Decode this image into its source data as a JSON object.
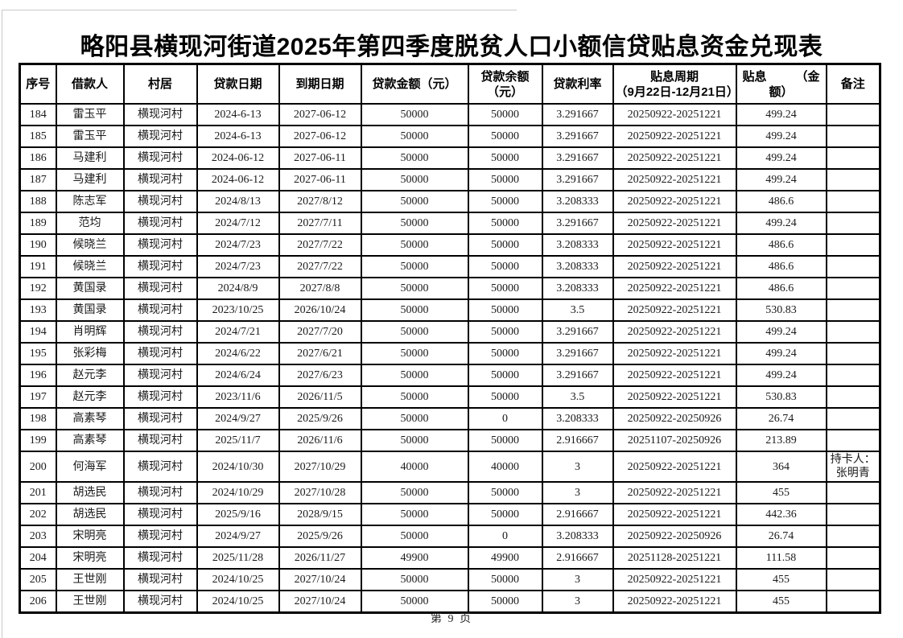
{
  "page": {
    "title": "略阳县横现河街道2025年第四季度脱贫人口小额信贷贴息资金兑现表",
    "footer": "第 9 页"
  },
  "table": {
    "headers": {
      "no": "序号",
      "borrower": "借款人",
      "village": "村居",
      "loan_date": "贷款日期",
      "due_date": "到期日期",
      "amount": "贷款金额（元）",
      "balance_line1": "贷款余额",
      "balance_line2": "（元）",
      "rate": "贷款利率",
      "period_line1": "贴息周期",
      "period_line2": "（9月22日-12月21日）",
      "subsidy_line1_left": "贴息",
      "subsidy_line1_right": "（金",
      "subsidy_line2": "额）",
      "remark": "备注"
    },
    "rows": [
      {
        "no": "184",
        "name": "雷玉平",
        "village": "横现河村",
        "loan_date": "2024-6-13",
        "due_date": "2027-06-12",
        "amount": "50000",
        "balance": "50000",
        "rate": "3.291667",
        "period": "20250922-20251221",
        "subsidy": "499.24",
        "remark": ""
      },
      {
        "no": "185",
        "name": "雷玉平",
        "village": "横现河村",
        "loan_date": "2024-6-13",
        "due_date": "2027-06-12",
        "amount": "50000",
        "balance": "50000",
        "rate": "3.291667",
        "period": "20250922-20251221",
        "subsidy": "499.24",
        "remark": ""
      },
      {
        "no": "186",
        "name": "马建利",
        "village": "横现河村",
        "loan_date": "2024-06-12",
        "due_date": "2027-06-11",
        "amount": "50000",
        "balance": "50000",
        "rate": "3.291667",
        "period": "20250922-20251221",
        "subsidy": "499.24",
        "remark": ""
      },
      {
        "no": "187",
        "name": "马建利",
        "village": "横现河村",
        "loan_date": "2024-06-12",
        "due_date": "2027-06-11",
        "amount": "50000",
        "balance": "50000",
        "rate": "3.291667",
        "period": "20250922-20251221",
        "subsidy": "499.24",
        "remark": ""
      },
      {
        "no": "188",
        "name": "陈志军",
        "village": "横现河村",
        "loan_date": "2024/8/13",
        "due_date": "2027/8/12",
        "amount": "50000",
        "balance": "50000",
        "rate": "3.208333",
        "period": "20250922-20251221",
        "subsidy": "486.6",
        "remark": ""
      },
      {
        "no": "189",
        "name": "范均",
        "village": "横现河村",
        "loan_date": "2024/7/12",
        "due_date": "2027/7/11",
        "amount": "50000",
        "balance": "50000",
        "rate": "3.291667",
        "period": "20250922-20251221",
        "subsidy": "499.24",
        "remark": ""
      },
      {
        "no": "190",
        "name": "候晓兰",
        "village": "横现河村",
        "loan_date": "2024/7/23",
        "due_date": "2027/7/22",
        "amount": "50000",
        "balance": "50000",
        "rate": "3.208333",
        "period": "20250922-20251221",
        "subsidy": "486.6",
        "remark": ""
      },
      {
        "no": "191",
        "name": "候晓兰",
        "village": "横现河村",
        "loan_date": "2024/7/23",
        "due_date": "2027/7/22",
        "amount": "50000",
        "balance": "50000",
        "rate": "3.208333",
        "period": "20250922-20251221",
        "subsidy": "486.6",
        "remark": ""
      },
      {
        "no": "192",
        "name": "黄国录",
        "village": "横现河村",
        "loan_date": "2024/8/9",
        "due_date": "2027/8/8",
        "amount": "50000",
        "balance": "50000",
        "rate": "3.208333",
        "period": "20250922-20251221",
        "subsidy": "486.6",
        "remark": ""
      },
      {
        "no": "193",
        "name": "黄国录",
        "village": "横现河村",
        "loan_date": "2023/10/25",
        "due_date": "2026/10/24",
        "amount": "50000",
        "balance": "50000",
        "rate": "3.5",
        "period": "20250922-20251221",
        "subsidy": "530.83",
        "remark": ""
      },
      {
        "no": "194",
        "name": "肖明辉",
        "village": "横现河村",
        "loan_date": "2024/7/21",
        "due_date": "2027/7/20",
        "amount": "50000",
        "balance": "50000",
        "rate": "3.291667",
        "period": "20250922-20251221",
        "subsidy": "499.24",
        "remark": ""
      },
      {
        "no": "195",
        "name": "张彩梅",
        "village": "横现河村",
        "loan_date": "2024/6/22",
        "due_date": "2027/6/21",
        "amount": "50000",
        "balance": "50000",
        "rate": "3.291667",
        "period": "20250922-20251221",
        "subsidy": "499.24",
        "remark": ""
      },
      {
        "no": "196",
        "name": "赵元李",
        "village": "横现河村",
        "loan_date": "2024/6/24",
        "due_date": "2027/6/23",
        "amount": "50000",
        "balance": "50000",
        "rate": "3.291667",
        "period": "20250922-20251221",
        "subsidy": "499.24",
        "remark": ""
      },
      {
        "no": "197",
        "name": "赵元李",
        "village": "横现河村",
        "loan_date": "2023/11/6",
        "due_date": "2026/11/5",
        "amount": "50000",
        "balance": "50000",
        "rate": "3.5",
        "period": "20250922-20251221",
        "subsidy": "530.83",
        "remark": ""
      },
      {
        "no": "198",
        "name": "高素琴",
        "village": "横现河村",
        "loan_date": "2024/9/27",
        "due_date": "2025/9/26",
        "amount": "50000",
        "balance": "0",
        "rate": "3.208333",
        "period": "20250922-20250926",
        "subsidy": "26.74",
        "remark": ""
      },
      {
        "no": "199",
        "name": "高素琴",
        "village": "横现河村",
        "loan_date": "2025/11/7",
        "due_date": "2026/11/6",
        "amount": "50000",
        "balance": "50000",
        "rate": "2.916667",
        "period": "20251107-20250926",
        "subsidy": "213.89",
        "remark": ""
      },
      {
        "no": "200",
        "name": "何海军",
        "village": "横现河村",
        "loan_date": "2024/10/30",
        "due_date": "2027/10/29",
        "amount": "40000",
        "balance": "40000",
        "rate": "3",
        "period": "20250922-20251221",
        "subsidy": "364",
        "remark": "持卡人：张明青"
      },
      {
        "no": "201",
        "name": "胡选民",
        "village": "横现河村",
        "loan_date": "2024/10/29",
        "due_date": "2027/10/28",
        "amount": "50000",
        "balance": "50000",
        "rate": "3",
        "period": "20250922-20251221",
        "subsidy": "455",
        "remark": ""
      },
      {
        "no": "202",
        "name": "胡选民",
        "village": "横现河村",
        "loan_date": "2025/9/16",
        "due_date": "2028/9/15",
        "amount": "50000",
        "balance": "50000",
        "rate": "2.916667",
        "period": "20250922-20251221",
        "subsidy": "442.36",
        "remark": ""
      },
      {
        "no": "203",
        "name": "宋明亮",
        "village": "横现河村",
        "loan_date": "2024/9/27",
        "due_date": "2025/9/26",
        "amount": "50000",
        "balance": "0",
        "rate": "3.208333",
        "period": "20250922-20250926",
        "subsidy": "26.74",
        "remark": ""
      },
      {
        "no": "204",
        "name": "宋明亮",
        "village": "横现河村",
        "loan_date": "2025/11/28",
        "due_date": "2026/11/27",
        "amount": "49900",
        "balance": "49900",
        "rate": "2.916667",
        "period": "20251128-20251221",
        "subsidy": "111.58",
        "remark": ""
      },
      {
        "no": "205",
        "name": "王世刚",
        "village": "横现河村",
        "loan_date": "2024/10/25",
        "due_date": "2027/10/24",
        "amount": "50000",
        "balance": "50000",
        "rate": "3",
        "period": "20250922-20251221",
        "subsidy": "455",
        "remark": ""
      },
      {
        "no": "206",
        "name": "王世刚",
        "village": "横现河村",
        "loan_date": "2024/10/25",
        "due_date": "2027/10/24",
        "amount": "50000",
        "balance": "50000",
        "rate": "3",
        "period": "20250922-20251221",
        "subsidy": "455",
        "remark": ""
      }
    ]
  }
}
